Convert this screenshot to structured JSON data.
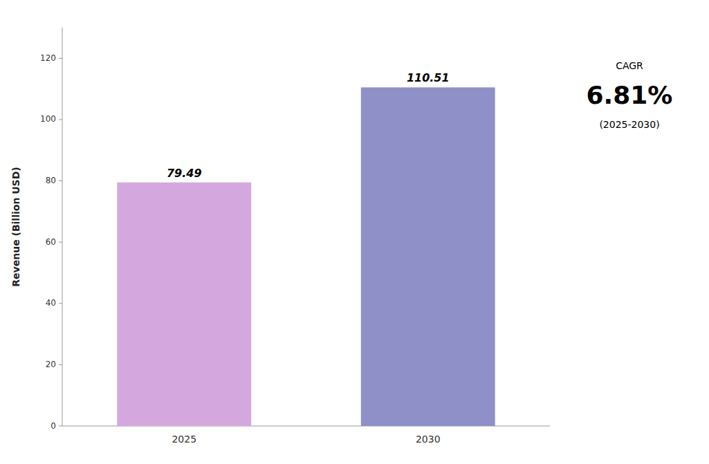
{
  "chart_data": {
    "type": "bar",
    "categories": [
      "2025",
      "2030"
    ],
    "values": [
      79.49,
      110.51
    ],
    "colors": [
      "#d4a8de",
      "#9090c8"
    ],
    "ylabel": "Revenue (Billion USD)",
    "ylim": [
      0,
      130
    ],
    "yticks": [
      0,
      20,
      40,
      60,
      80,
      100,
      120
    ],
    "grid": false,
    "data_labels": true,
    "annotations": [
      "CAGR",
      "6.81%",
      "(2025-2030)"
    ]
  }
}
